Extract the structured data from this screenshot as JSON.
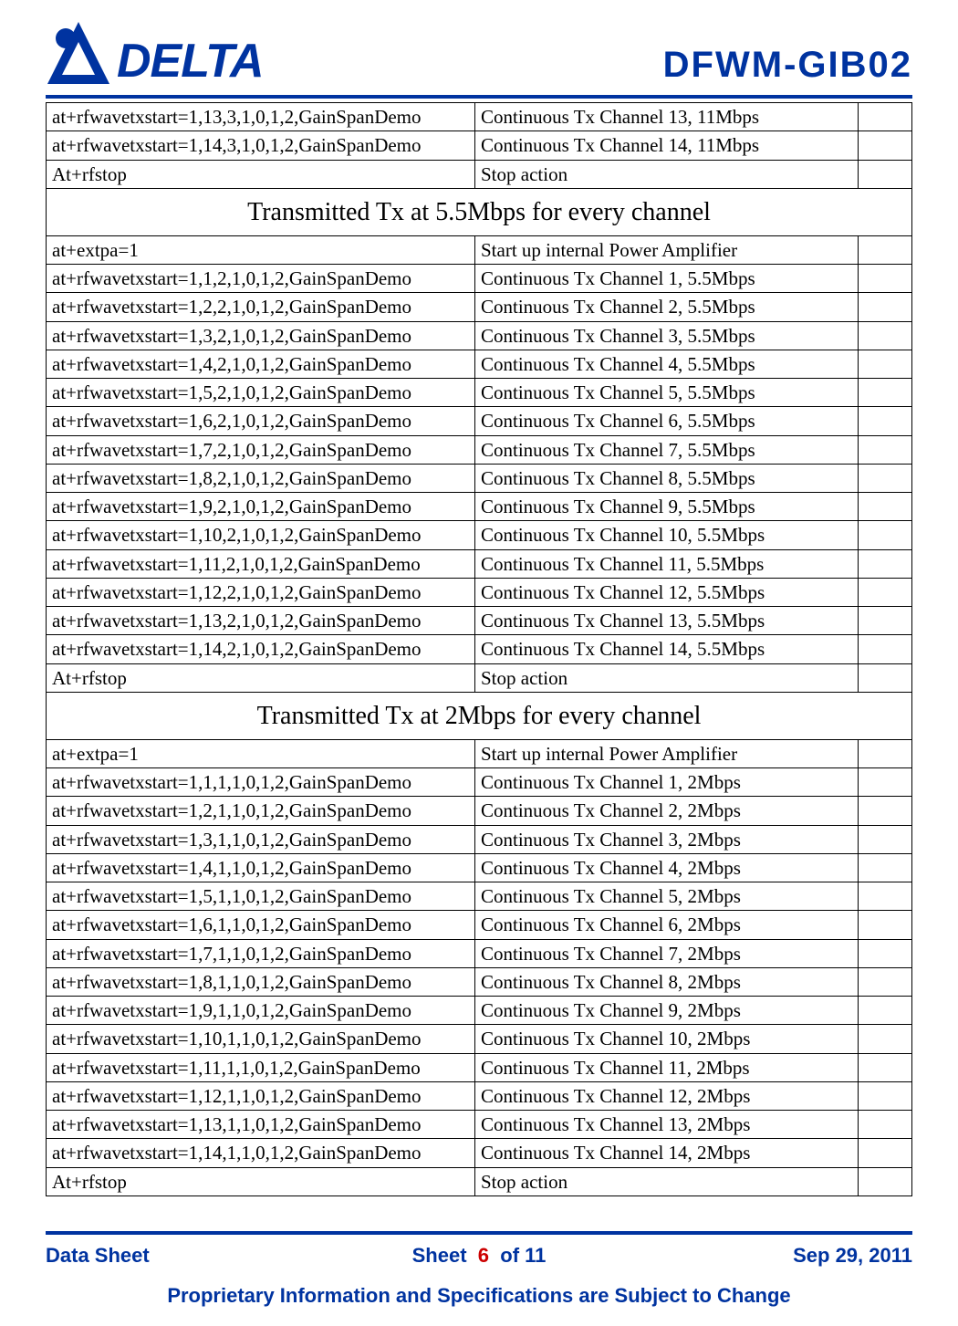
{
  "header": {
    "part_number": "DFWM-GIB02",
    "logo_text": "DELTA",
    "logo_color": "#0033a0"
  },
  "top_rows": [
    {
      "c1": "at+rfwavetxstart=1,13,3,1,0,1,2,GainSpanDemo",
      "c2": "Continuous Tx Channel 13, 11Mbps"
    },
    {
      "c1": "at+rfwavetxstart=1,14,3,1,0,1,2,GainSpanDemo",
      "c2": "Continuous Tx Channel 14, 11Mbps"
    },
    {
      "c1": "At+rfstop",
      "c2": "Stop action"
    }
  ],
  "sections": [
    {
      "title": "Transmitted Tx at 5.5Mbps for every channel",
      "rows": [
        {
          "c1": "at+extpa=1",
          "c2": "Start up internal Power Amplifier"
        },
        {
          "c1": "at+rfwavetxstart=1,1,2,1,0,1,2,GainSpanDemo",
          "c2": "Continuous Tx Channel 1, 5.5Mbps"
        },
        {
          "c1": "at+rfwavetxstart=1,2,2,1,0,1,2,GainSpanDemo",
          "c2": "Continuous Tx Channel 2, 5.5Mbps"
        },
        {
          "c1": "at+rfwavetxstart=1,3,2,1,0,1,2,GainSpanDemo",
          "c2": "Continuous Tx Channel 3, 5.5Mbps"
        },
        {
          "c1": "at+rfwavetxstart=1,4,2,1,0,1,2,GainSpanDemo",
          "c2": "Continuous Tx Channel 4, 5.5Mbps"
        },
        {
          "c1": "at+rfwavetxstart=1,5,2,1,0,1,2,GainSpanDemo",
          "c2": "Continuous Tx Channel 5, 5.5Mbps"
        },
        {
          "c1": "at+rfwavetxstart=1,6,2,1,0,1,2,GainSpanDemo",
          "c2": "Continuous Tx Channel 6, 5.5Mbps"
        },
        {
          "c1": "at+rfwavetxstart=1,7,2,1,0,1,2,GainSpanDemo",
          "c2": "Continuous Tx Channel 7, 5.5Mbps"
        },
        {
          "c1": "at+rfwavetxstart=1,8,2,1,0,1,2,GainSpanDemo",
          "c2": "Continuous Tx Channel 8, 5.5Mbps"
        },
        {
          "c1": "at+rfwavetxstart=1,9,2,1,0,1,2,GainSpanDemo",
          "c2": "Continuous Tx Channel 9, 5.5Mbps"
        },
        {
          "c1": "at+rfwavetxstart=1,10,2,1,0,1,2,GainSpanDemo",
          "c2": "Continuous Tx Channel 10, 5.5Mbps"
        },
        {
          "c1": "at+rfwavetxstart=1,11,2,1,0,1,2,GainSpanDemo",
          "c2": "Continuous Tx Channel 11, 5.5Mbps"
        },
        {
          "c1": "at+rfwavetxstart=1,12,2,1,0,1,2,GainSpanDemo",
          "c2": "Continuous Tx Channel 12, 5.5Mbps"
        },
        {
          "c1": "at+rfwavetxstart=1,13,2,1,0,1,2,GainSpanDemo",
          "c2": "Continuous Tx Channel 13, 5.5Mbps"
        },
        {
          "c1": "at+rfwavetxstart=1,14,2,1,0,1,2,GainSpanDemo",
          "c2": "Continuous Tx Channel 14, 5.5Mbps"
        },
        {
          "c1": "At+rfstop",
          "c2": "Stop action"
        }
      ]
    },
    {
      "title": "Transmitted Tx at 2Mbps for every channel",
      "rows": [
        {
          "c1": "at+extpa=1",
          "c2": "Start up internal Power Amplifier"
        },
        {
          "c1": "at+rfwavetxstart=1,1,1,1,0,1,2,GainSpanDemo",
          "c2": "Continuous Tx Channel 1, 2Mbps"
        },
        {
          "c1": "at+rfwavetxstart=1,2,1,1,0,1,2,GainSpanDemo",
          "c2": "Continuous Tx Channel 2, 2Mbps"
        },
        {
          "c1": "at+rfwavetxstart=1,3,1,1,0,1,2,GainSpanDemo",
          "c2": "Continuous Tx Channel 3, 2Mbps"
        },
        {
          "c1": "at+rfwavetxstart=1,4,1,1,0,1,2,GainSpanDemo",
          "c2": "Continuous Tx Channel 4, 2Mbps"
        },
        {
          "c1": "at+rfwavetxstart=1,5,1,1,0,1,2,GainSpanDemo",
          "c2": "Continuous Tx Channel 5, 2Mbps"
        },
        {
          "c1": "at+rfwavetxstart=1,6,1,1,0,1,2,GainSpanDemo",
          "c2": "Continuous Tx Channel 6, 2Mbps"
        },
        {
          "c1": "at+rfwavetxstart=1,7,1,1,0,1,2,GainSpanDemo",
          "c2": "Continuous Tx Channel 7, 2Mbps"
        },
        {
          "c1": "at+rfwavetxstart=1,8,1,1,0,1,2,GainSpanDemo",
          "c2": "Continuous Tx Channel 8, 2Mbps"
        },
        {
          "c1": "at+rfwavetxstart=1,9,1,1,0,1,2,GainSpanDemo",
          "c2": "Continuous Tx Channel 9, 2Mbps"
        },
        {
          "c1": "at+rfwavetxstart=1,10,1,1,0,1,2,GainSpanDemo",
          "c2": "Continuous Tx Channel 10, 2Mbps"
        },
        {
          "c1": "at+rfwavetxstart=1,11,1,1,0,1,2,GainSpanDemo",
          "c2": "Continuous Tx Channel 11, 2Mbps"
        },
        {
          "c1": "at+rfwavetxstart=1,12,1,1,0,1,2,GainSpanDemo",
          "c2": "Continuous Tx Channel 12, 2Mbps"
        },
        {
          "c1": "at+rfwavetxstart=1,13,1,1,0,1,2,GainSpanDemo",
          "c2": "Continuous Tx Channel 13, 2Mbps"
        },
        {
          "c1": "at+rfwavetxstart=1,14,1,1,0,1,2,GainSpanDemo",
          "c2": "Continuous Tx Channel 14, 2Mbps"
        },
        {
          "c1": "At+rfstop",
          "c2": "Stop action"
        }
      ]
    }
  ],
  "footer": {
    "left": "Data Sheet",
    "center_prefix": "Sheet",
    "page_num": "6",
    "center_suffix": "of 11",
    "right": "Sep 29, 2011",
    "proprietary": "Proprietary Information and Specifications are Subject to Change"
  },
  "style": {
    "accent": "#0033a0",
    "page_num_color": "#cc0000",
    "body_font": "Times New Roman",
    "header_font": "Arial",
    "cell_fontsize": 21,
    "section_header_fontsize": 28,
    "part_number_fontsize": 40
  }
}
